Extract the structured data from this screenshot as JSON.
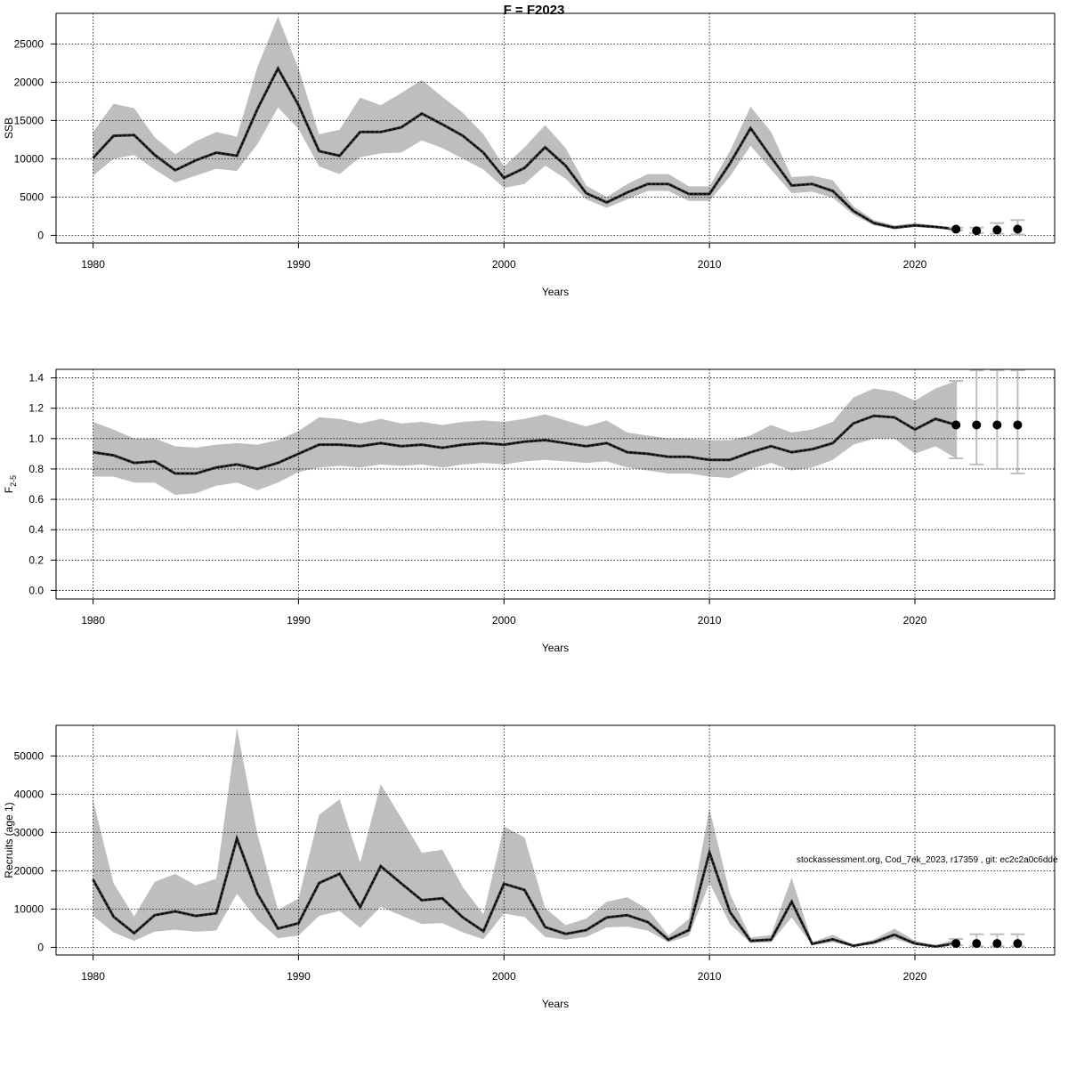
{
  "page_title": "F = F2023",
  "watermark": "stockassessment.org, Cod_7ek_2023, r17359 , git: ec2c2a0c6dde",
  "colors": {
    "band": "#bebebe",
    "line": "#000000",
    "grid": "#000000",
    "errorbar": "#bebebe",
    "point": "#000000"
  },
  "chart_data": [
    {
      "type": "line",
      "title": "F = F2023",
      "xlabel": "Years",
      "ylabel": "SSB",
      "xlim": [
        1978.2,
        2026.8
      ],
      "ylim": [
        -1000,
        29000
      ],
      "xticks": [
        1980,
        1990,
        2000,
        2010,
        2020
      ],
      "yticks": [
        0,
        5000,
        10000,
        15000,
        20000,
        25000
      ],
      "x": [
        1980,
        1981,
        1982,
        1983,
        1984,
        1985,
        1986,
        1987,
        1988,
        1989,
        1990,
        1991,
        1992,
        1993,
        1994,
        1995,
        1996,
        1997,
        1998,
        1999,
        2000,
        2001,
        2002,
        2003,
        2004,
        2005,
        2006,
        2007,
        2008,
        2009,
        2010,
        2011,
        2012,
        2013,
        2014,
        2015,
        2016,
        2017,
        2018,
        2019,
        2020,
        2021,
        2022
      ],
      "estimate": [
        10100,
        13000,
        13100,
        10500,
        8500,
        9800,
        10800,
        10400,
        16500,
        21800,
        17000,
        11000,
        10400,
        13500,
        13500,
        14100,
        15900,
        14500,
        13000,
        10800,
        7500,
        8800,
        11500,
        9100,
        5500,
        4300,
        5600,
        6700,
        6700,
        5400,
        5400,
        9400,
        14000,
        10200,
        6500,
        6700,
        5800,
        3200,
        1600,
        1000,
        1300,
        1100,
        800
      ],
      "upper": [
        13500,
        17200,
        16600,
        12800,
        10600,
        12300,
        13500,
        12900,
        22000,
        28600,
        21800,
        13200,
        13800,
        18000,
        17000,
        18600,
        20300,
        18100,
        16000,
        13200,
        9000,
        11500,
        14400,
        11400,
        6500,
        5000,
        6700,
        8000,
        8000,
        6400,
        6400,
        11000,
        16800,
        13500,
        7600,
        7800,
        7200,
        3800,
        2000,
        1300,
        1600,
        1300,
        1000
      ],
      "lower": [
        7800,
        10000,
        10500,
        8600,
        6900,
        7800,
        8700,
        8400,
        11900,
        16700,
        13900,
        9000,
        8000,
        10200,
        10700,
        10800,
        12400,
        11400,
        10000,
        8600,
        6200,
        6700,
        9100,
        7400,
        4700,
        3600,
        4700,
        5800,
        5800,
        4500,
        4500,
        7700,
        11700,
        8600,
        5500,
        5700,
        4900,
        2700,
        1300,
        800,
        1100,
        900,
        650
      ],
      "projection": [
        {
          "x": 2022,
          "y": 800,
          "lo": 650,
          "hi": 1000
        },
        {
          "x": 2023,
          "y": 600,
          "lo": 300,
          "hi": 1000
        },
        {
          "x": 2024,
          "y": 700,
          "lo": 200,
          "hi": 1600
        },
        {
          "x": 2025,
          "y": 800,
          "lo": 100,
          "hi": 2000
        }
      ]
    },
    {
      "type": "line",
      "title": "",
      "xlabel": "Years",
      "ylabel": "F",
      "ylabel_sub": "2-5",
      "xlim": [
        1978.2,
        2026.8
      ],
      "ylim": [
        -0.056,
        1.456
      ],
      "xticks": [
        1980,
        1990,
        2000,
        2010,
        2020
      ],
      "yticks": [
        0.0,
        0.2,
        0.4,
        0.6,
        0.8,
        1.0,
        1.2,
        1.4
      ],
      "ytick_labels": [
        "0.0",
        "0.2",
        "0.4",
        "0.6",
        "0.8",
        "1.0",
        "1.2",
        "1.4"
      ],
      "x": [
        1980,
        1981,
        1982,
        1983,
        1984,
        1985,
        1986,
        1987,
        1988,
        1989,
        1990,
        1991,
        1992,
        1993,
        1994,
        1995,
        1996,
        1997,
        1998,
        1999,
        2000,
        2001,
        2002,
        2003,
        2004,
        2005,
        2006,
        2007,
        2008,
        2009,
        2010,
        2011,
        2012,
        2013,
        2014,
        2015,
        2016,
        2017,
        2018,
        2019,
        2020,
        2021,
        2022
      ],
      "estimate": [
        0.91,
        0.89,
        0.84,
        0.85,
        0.77,
        0.77,
        0.81,
        0.83,
        0.8,
        0.84,
        0.9,
        0.96,
        0.96,
        0.95,
        0.97,
        0.95,
        0.96,
        0.94,
        0.96,
        0.97,
        0.96,
        0.98,
        0.99,
        0.97,
        0.95,
        0.97,
        0.91,
        0.9,
        0.88,
        0.88,
        0.86,
        0.86,
        0.91,
        0.95,
        0.91,
        0.93,
        0.97,
        1.1,
        1.15,
        1.14,
        1.06,
        1.13,
        1.09
      ],
      "upper": [
        1.11,
        1.06,
        1.0,
        1.0,
        0.95,
        0.94,
        0.96,
        0.97,
        0.96,
        0.99,
        1.05,
        1.14,
        1.13,
        1.1,
        1.13,
        1.1,
        1.11,
        1.09,
        1.11,
        1.12,
        1.11,
        1.13,
        1.16,
        1.12,
        1.08,
        1.12,
        1.04,
        1.02,
        1.0,
        1.0,
        0.99,
        0.99,
        1.02,
        1.09,
        1.04,
        1.06,
        1.11,
        1.27,
        1.33,
        1.31,
        1.25,
        1.33,
        1.38
      ],
      "lower": [
        0.75,
        0.75,
        0.71,
        0.71,
        0.63,
        0.64,
        0.69,
        0.71,
        0.66,
        0.71,
        0.78,
        0.81,
        0.82,
        0.81,
        0.83,
        0.82,
        0.83,
        0.81,
        0.83,
        0.84,
        0.83,
        0.85,
        0.86,
        0.85,
        0.84,
        0.85,
        0.81,
        0.79,
        0.77,
        0.77,
        0.75,
        0.74,
        0.8,
        0.84,
        0.79,
        0.81,
        0.86,
        0.96,
        1.0,
        1.0,
        0.9,
        0.95,
        0.87
      ],
      "projection": [
        {
          "x": 2022,
          "y": 1.09,
          "lo": 0.87,
          "hi": 1.38
        },
        {
          "x": 2023,
          "y": 1.09,
          "lo": 0.83,
          "hi": 1.45
        },
        {
          "x": 2024,
          "y": 1.09,
          "lo": 0.8,
          "hi": 1.45
        },
        {
          "x": 2025,
          "y": 1.09,
          "lo": 0.77,
          "hi": 1.45
        }
      ]
    },
    {
      "type": "line",
      "title": "",
      "xlabel": "Years",
      "ylabel": "Recruits (age 1)",
      "xlim": [
        1978.2,
        2026.8
      ],
      "ylim": [
        -2000,
        58000
      ],
      "xticks": [
        1980,
        1990,
        2000,
        2010,
        2020
      ],
      "yticks": [
        0,
        10000,
        20000,
        30000,
        40000,
        50000
      ],
      "x": [
        1980,
        1981,
        1982,
        1983,
        1984,
        1985,
        1986,
        1987,
        1988,
        1989,
        1990,
        1991,
        1992,
        1993,
        1994,
        1995,
        1996,
        1997,
        1998,
        1999,
        2000,
        2001,
        2002,
        2003,
        2004,
        2005,
        2006,
        2007,
        2008,
        2009,
        2010,
        2011,
        2012,
        2013,
        2014,
        2015,
        2016,
        2017,
        2018,
        2019,
        2020,
        2021,
        2022
      ],
      "estimate": [
        17700,
        8000,
        3700,
        8400,
        9400,
        8200,
        8900,
        28400,
        14000,
        4900,
        6300,
        16800,
        19200,
        10500,
        21200,
        16700,
        12300,
        12800,
        7800,
        4200,
        16600,
        15000,
        5300,
        3500,
        4500,
        7800,
        8400,
        6600,
        2000,
        4500,
        24800,
        9200,
        1700,
        2000,
        11900,
        900,
        2100,
        400,
        1300,
        3300,
        1000,
        200,
        1000
      ],
      "upper": [
        38500,
        16700,
        8100,
        17100,
        19200,
        16200,
        17900,
        57300,
        29600,
        9800,
        12700,
        34600,
        38700,
        22100,
        42600,
        33800,
        24700,
        25500,
        15700,
        8600,
        31600,
        28700,
        10300,
        5800,
        7500,
        11900,
        13100,
        9900,
        3100,
        7400,
        36200,
        13900,
        2600,
        3200,
        18200,
        1300,
        3300,
        700,
        2000,
        4900,
        1700,
        500,
        2200
      ],
      "lower": [
        8200,
        3900,
        1700,
        4100,
        4600,
        4100,
        4400,
        14000,
        7100,
        2400,
        3100,
        8200,
        9500,
        5100,
        10600,
        8300,
        6100,
        6300,
        3900,
        2100,
        8800,
        7900,
        2700,
        2000,
        2700,
        5200,
        5400,
        4400,
        1300,
        3000,
        16800,
        6100,
        1100,
        1300,
        7800,
        600,
        1300,
        200,
        800,
        2200,
        600,
        100,
        500
      ],
      "projection": [
        {
          "x": 2022,
          "y": 1000,
          "lo": 500,
          "hi": 2200
        },
        {
          "x": 2023,
          "y": 1000,
          "lo": 300,
          "hi": 3400
        },
        {
          "x": 2024,
          "y": 1000,
          "lo": 300,
          "hi": 3400
        },
        {
          "x": 2025,
          "y": 1000,
          "lo": 300,
          "hi": 3400
        }
      ]
    }
  ]
}
